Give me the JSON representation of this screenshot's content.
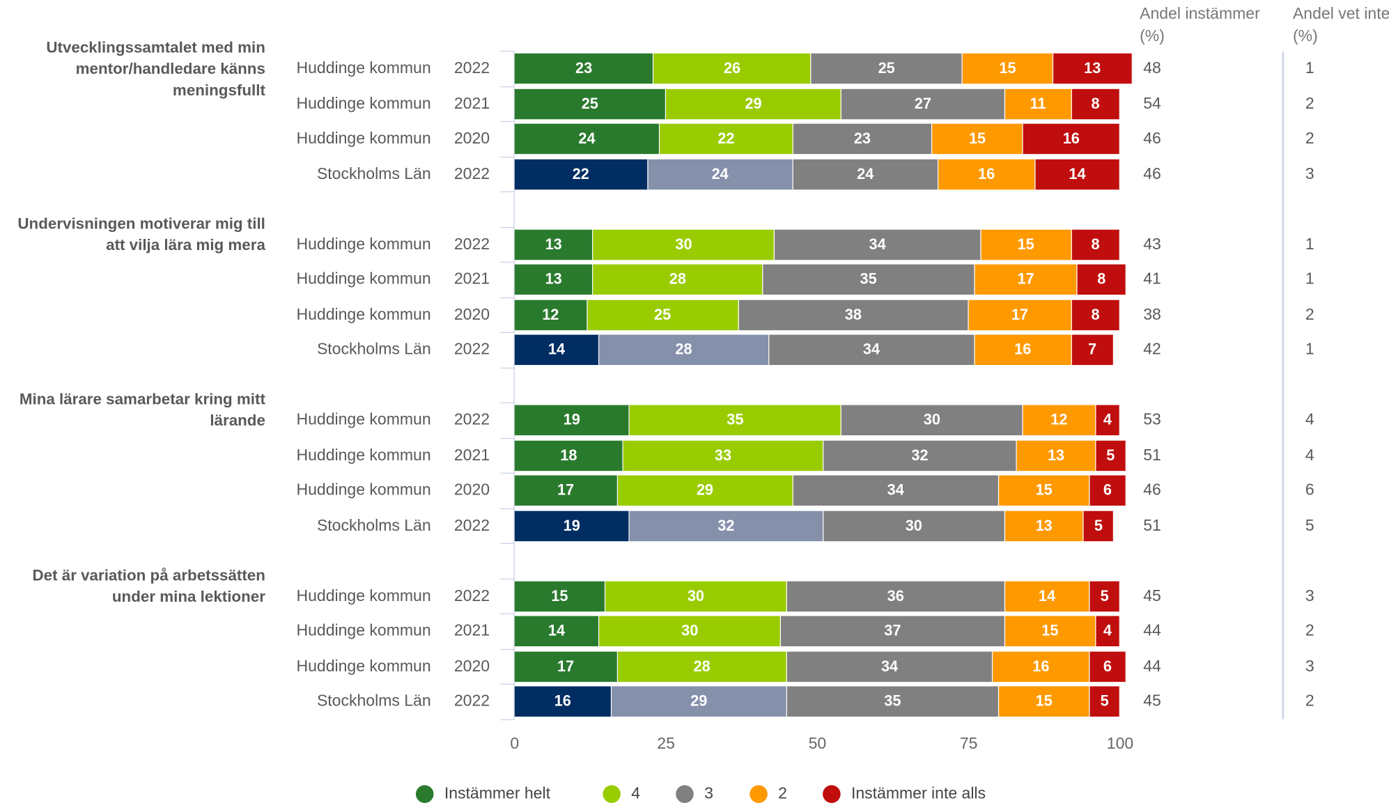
{
  "chart_data": {
    "type": "stacked_bar",
    "columns": [
      "Andel instämmer (%)",
      "Andel vet inte (%)"
    ],
    "series": [
      {
        "name": "Instämmer helt",
        "color": "#2a7a2e"
      },
      {
        "name": "4",
        "color": "#99cc00"
      },
      {
        "name": "3",
        "color": "#808080"
      },
      {
        "name": "2",
        "color": "#ff9900"
      },
      {
        "name": "Instämmer inte alls",
        "color": "#c00d0d"
      }
    ],
    "xlim": [
      0,
      100
    ],
    "xticks": [
      0,
      25,
      50,
      75,
      100
    ],
    "groups": [
      {
        "title": "Utvecklingssamtalet med min mentor/handledare känns meningsfullt",
        "rows": [
          {
            "entity": "Huddinge kommun",
            "year": 2022,
            "values": [
              23,
              26,
              25,
              15,
              13
            ],
            "instammer": 48,
            "vet_inte": 1
          },
          {
            "entity": "Huddinge kommun",
            "year": 2021,
            "values": [
              25,
              29,
              27,
              11,
              8
            ],
            "instammer": 54,
            "vet_inte": 2
          },
          {
            "entity": "Huddinge kommun",
            "year": 2020,
            "values": [
              24,
              22,
              23,
              15,
              16
            ],
            "instammer": 46,
            "vet_inte": 2
          },
          {
            "entity": "Stockholms Län",
            "year": 2022,
            "values": [
              22,
              24,
              24,
              16,
              14
            ],
            "instammer": 46,
            "vet_inte": 3,
            "colors": [
              "#002d62",
              "#8590ab",
              "#808080",
              "#ff9900",
              "#c00d0d"
            ]
          }
        ]
      },
      {
        "title": "Undervisningen motiverar mig till att vilja lära mig mera",
        "rows": [
          {
            "entity": "Huddinge kommun",
            "year": 2022,
            "values": [
              13,
              30,
              34,
              15,
              8
            ],
            "instammer": 43,
            "vet_inte": 1
          },
          {
            "entity": "Huddinge kommun",
            "year": 2021,
            "values": [
              13,
              28,
              35,
              17,
              8
            ],
            "instammer": 41,
            "vet_inte": 1
          },
          {
            "entity": "Huddinge kommun",
            "year": 2020,
            "values": [
              12,
              25,
              38,
              17,
              8
            ],
            "instammer": 38,
            "vet_inte": 2
          },
          {
            "entity": "Stockholms Län",
            "year": 2022,
            "values": [
              14,
              28,
              34,
              16,
              7
            ],
            "instammer": 42,
            "vet_inte": 1,
            "colors": [
              "#002d62",
              "#8590ab",
              "#808080",
              "#ff9900",
              "#c00d0d"
            ]
          }
        ]
      },
      {
        "title": "Mina lärare samarbetar kring mitt lärande",
        "rows": [
          {
            "entity": "Huddinge kommun",
            "year": 2022,
            "values": [
              19,
              35,
              30,
              12,
              4
            ],
            "instammer": 53,
            "vet_inte": 4
          },
          {
            "entity": "Huddinge kommun",
            "year": 2021,
            "values": [
              18,
              33,
              32,
              13,
              5
            ],
            "instammer": 51,
            "vet_inte": 4
          },
          {
            "entity": "Huddinge kommun",
            "year": 2020,
            "values": [
              17,
              29,
              34,
              15,
              6
            ],
            "instammer": 46,
            "vet_inte": 6
          },
          {
            "entity": "Stockholms Län",
            "year": 2022,
            "values": [
              19,
              32,
              30,
              13,
              5
            ],
            "instammer": 51,
            "vet_inte": 5,
            "colors": [
              "#002d62",
              "#8590ab",
              "#808080",
              "#ff9900",
              "#c00d0d"
            ]
          }
        ]
      },
      {
        "title": "Det är variation på arbetssätten under mina lektioner",
        "rows": [
          {
            "entity": "Huddinge kommun",
            "year": 2022,
            "values": [
              15,
              30,
              36,
              14,
              5
            ],
            "instammer": 45,
            "vet_inte": 3
          },
          {
            "entity": "Huddinge kommun",
            "year": 2021,
            "values": [
              14,
              30,
              37,
              15,
              4
            ],
            "instammer": 44,
            "vet_inte": 2
          },
          {
            "entity": "Huddinge kommun",
            "year": 2020,
            "values": [
              17,
              28,
              34,
              16,
              6
            ],
            "instammer": 44,
            "vet_inte": 3
          },
          {
            "entity": "Stockholms Län",
            "year": 2022,
            "values": [
              16,
              29,
              35,
              15,
              5
            ],
            "instammer": 45,
            "vet_inte": 2,
            "colors": [
              "#002d62",
              "#8590ab",
              "#808080",
              "#ff9900",
              "#c00d0d"
            ]
          }
        ]
      }
    ]
  }
}
